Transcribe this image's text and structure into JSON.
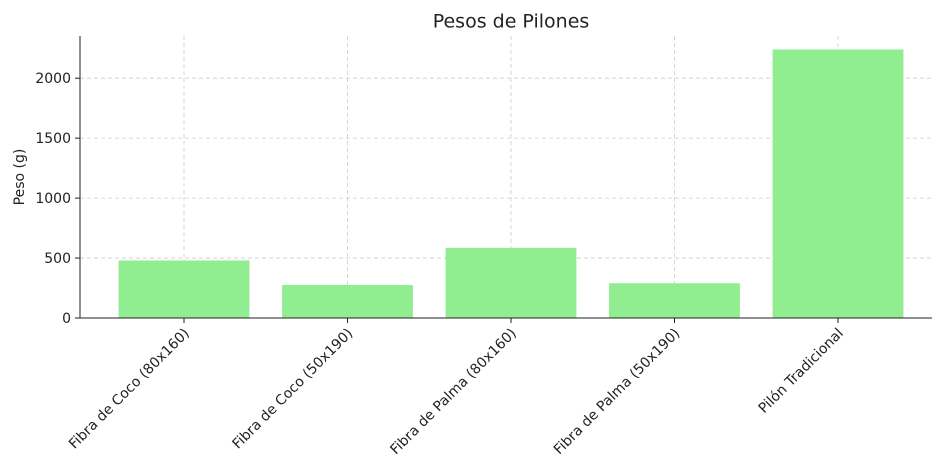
{
  "chart_data": {
    "type": "bar",
    "title": "Pesos de Pilones",
    "y_label": "Peso (g)",
    "categories": [
      "Fibra de Coco (80x160)",
      "Fibra de Coco (50x190)",
      "Fibra de Palma (80x160)",
      "Fibra de Palma (50x190)",
      "Pilón Tradicional"
    ],
    "values": [
      480,
      275,
      585,
      290,
      2240
    ],
    "color": "#90ee90",
    "ylim": [
      0,
      2352
    ],
    "yticks": [
      0,
      500,
      1000,
      1500,
      2000
    ],
    "grid": true
  }
}
